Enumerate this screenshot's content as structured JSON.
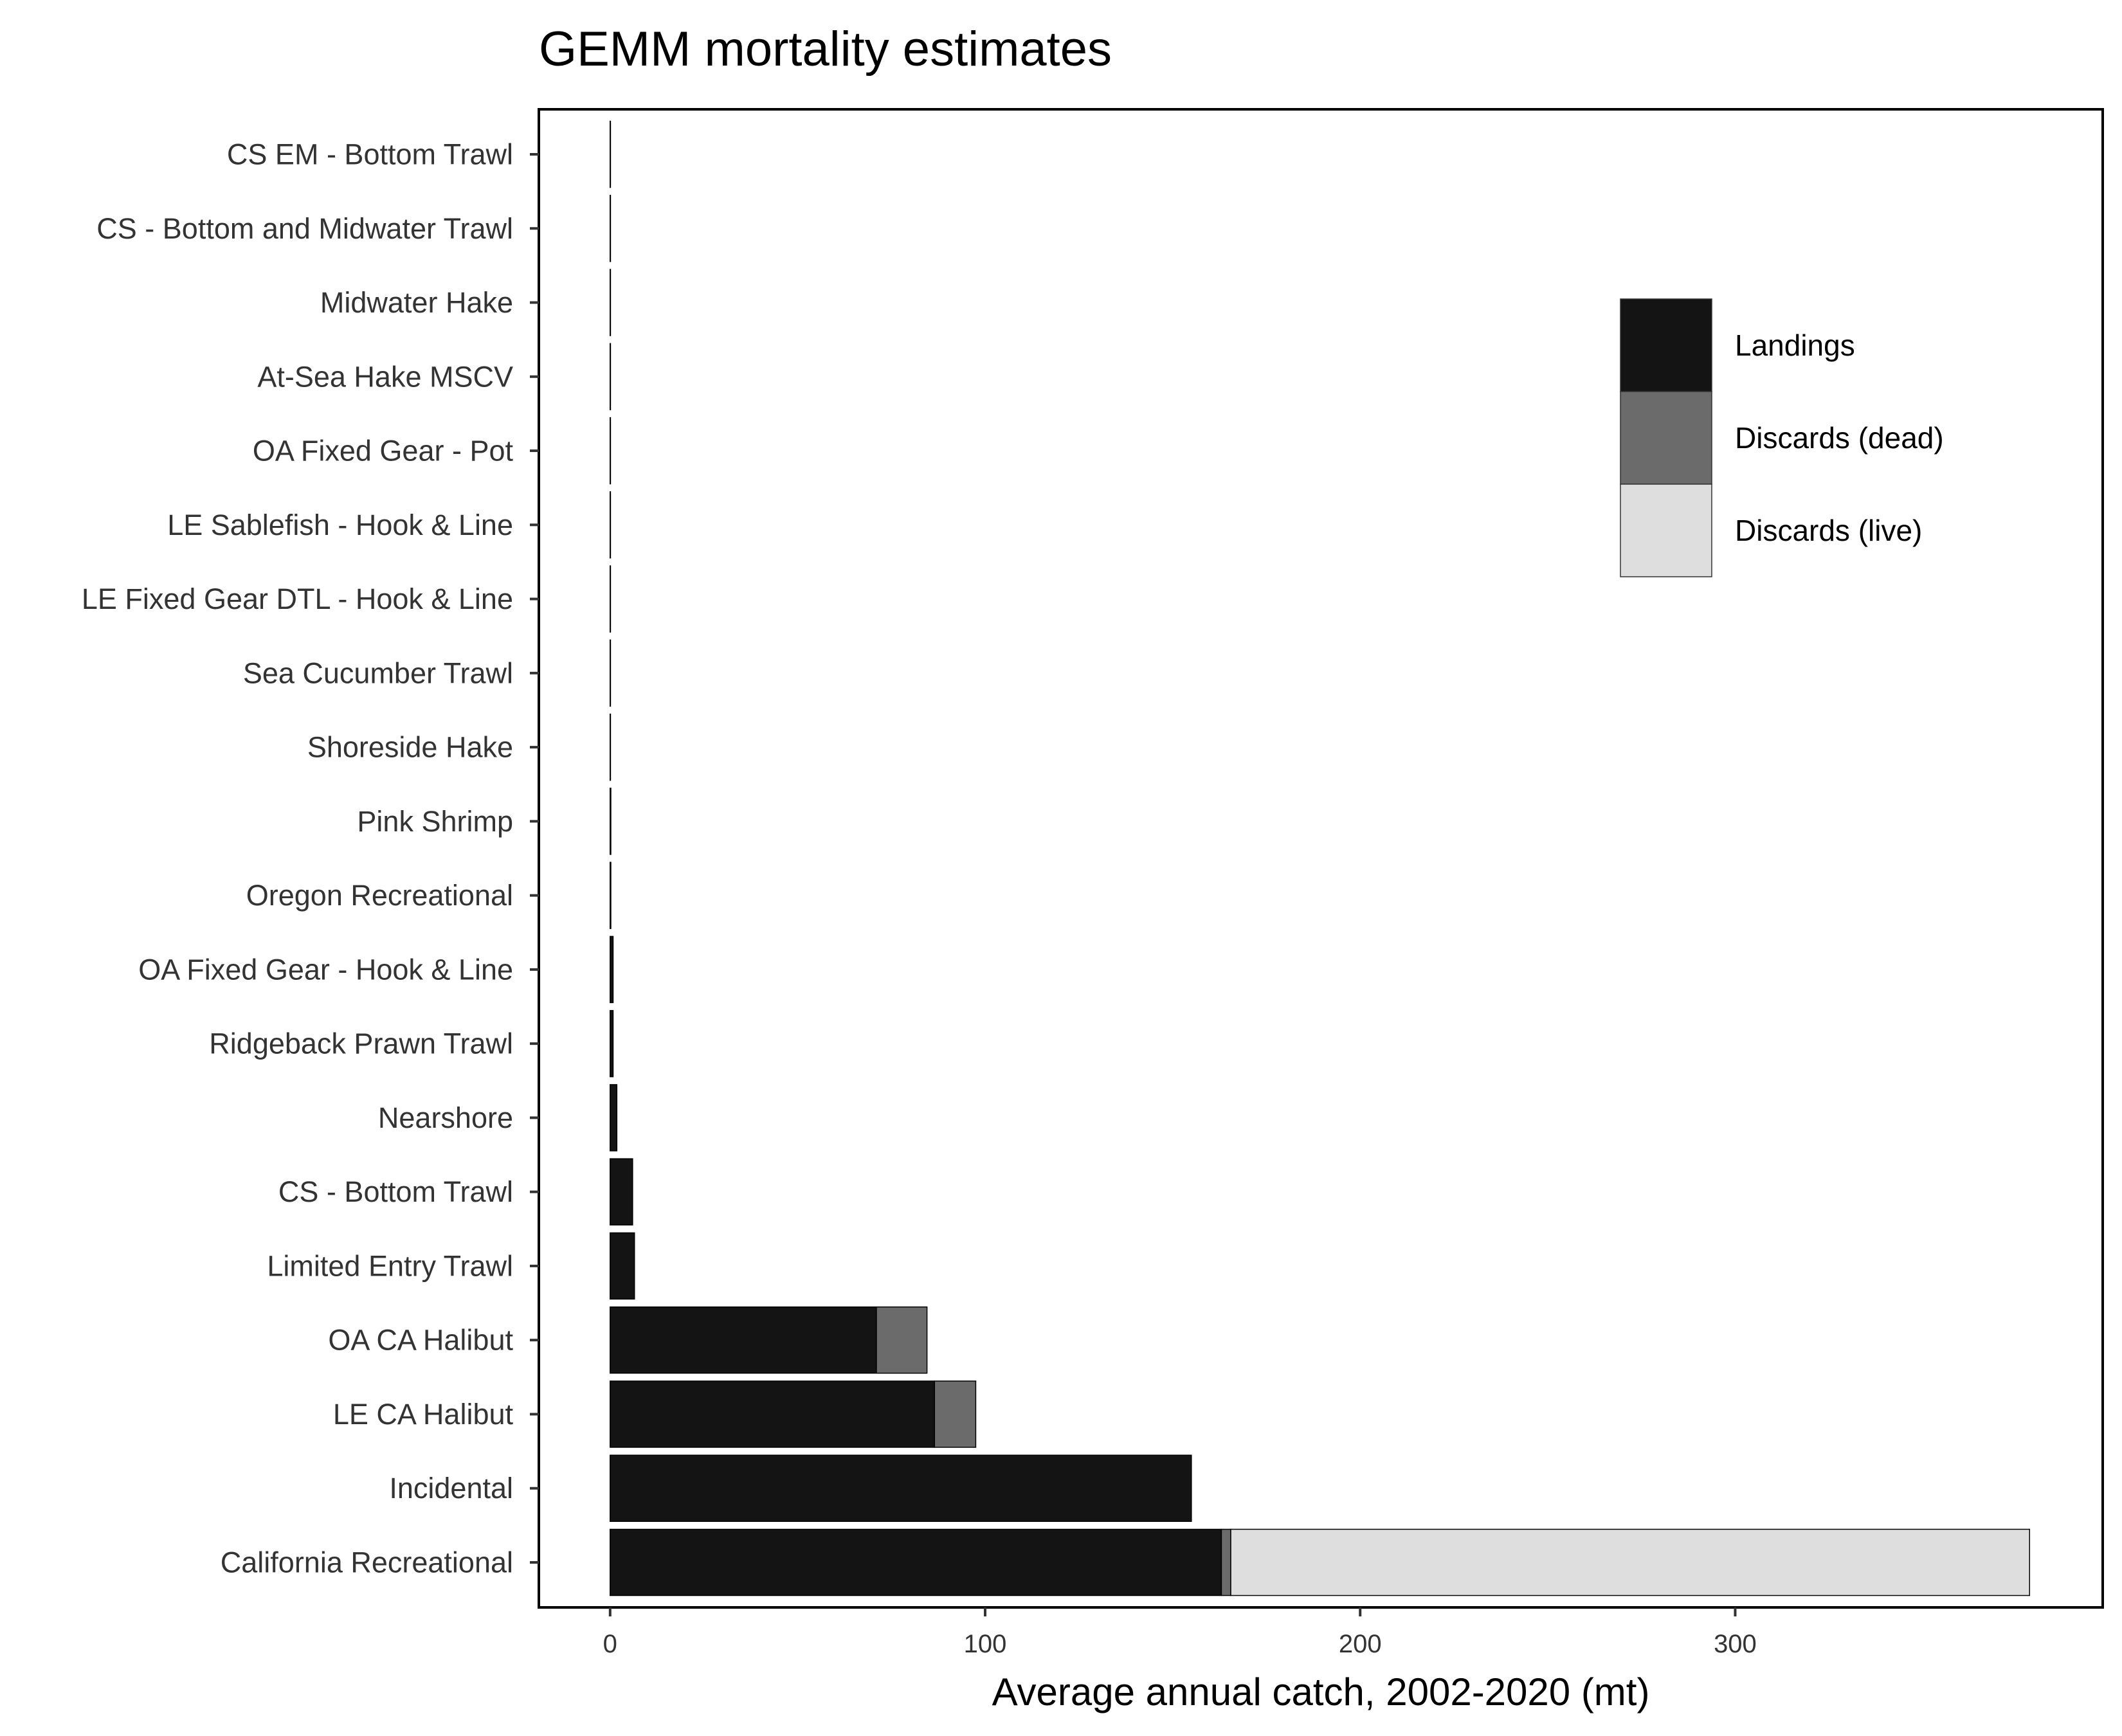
{
  "chart_data": {
    "type": "bar",
    "orientation": "horizontal",
    "stacked": true,
    "title": "GEMM mortality estimates",
    "xlabel": "Average annual catch, 2002-2020 (mt)",
    "ylabel": "",
    "xlim": [
      -19,
      398
    ],
    "xticks": [
      0,
      100,
      200,
      300
    ],
    "grid": false,
    "legend_position": "top-right",
    "categories": [
      "CS EM - Bottom Trawl",
      "CS - Bottom and Midwater Trawl",
      "Midwater Hake",
      "At-Sea Hake MSCV",
      "OA Fixed Gear - Pot",
      "LE Sablefish - Hook & Line",
      "LE Fixed Gear DTL - Hook & Line",
      "Sea Cucumber Trawl",
      "Shoreside Hake",
      "Pink Shrimp",
      "Oregon Recreational",
      "OA Fixed Gear - Hook & Line",
      "Ridgeback Prawn Trawl",
      "Nearshore",
      "CS - Bottom Trawl",
      "Limited Entry Trawl",
      "OA CA Halibut",
      "LE CA Halibut",
      "Incidental",
      "California Recreational"
    ],
    "series": [
      {
        "name": "Landings",
        "color": "#141414",
        "values": [
          0.05,
          0.05,
          0.05,
          0.05,
          0.1,
          0.1,
          0.1,
          0.1,
          0.1,
          0.2,
          0.2,
          0.8,
          0.8,
          1.8,
          6.0,
          6.5,
          71,
          86.5,
          155,
          163
        ]
      },
      {
        "name": "Discards (dead)",
        "color": "#6b6b6b",
        "values": [
          0,
          0,
          0,
          0,
          0,
          0,
          0,
          0,
          0,
          0,
          0,
          0,
          0,
          0,
          0,
          0,
          13.5,
          11,
          0,
          2.5
        ]
      },
      {
        "name": "Discards (live)",
        "color": "#dedede",
        "values": [
          0,
          0,
          0,
          0,
          0,
          0,
          0,
          0,
          0,
          0,
          0,
          0,
          0,
          0,
          0,
          0,
          0,
          0,
          0,
          213
        ]
      }
    ]
  }
}
